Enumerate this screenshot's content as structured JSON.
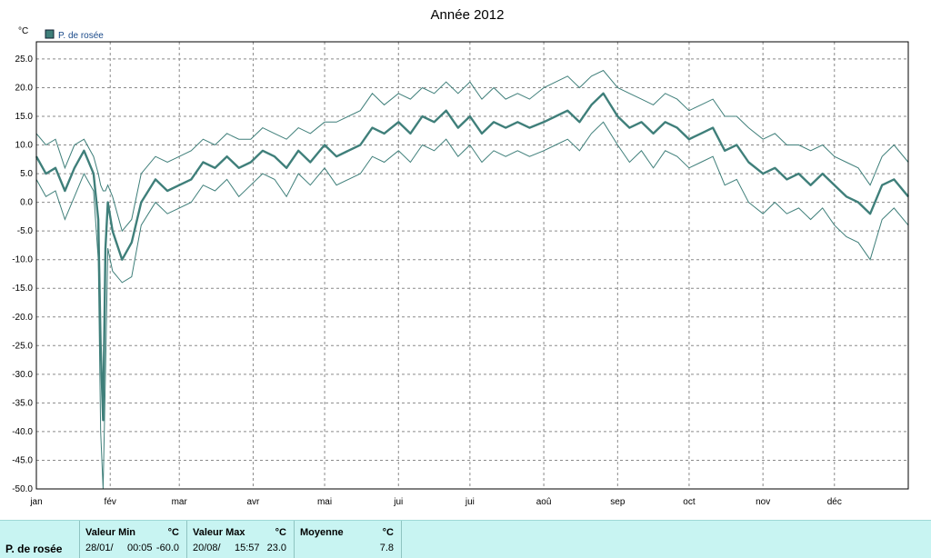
{
  "chart_data": {
    "type": "line",
    "title": "Année 2012",
    "ylabel": "°C",
    "ylim": [
      -50,
      28
    ],
    "yticks": [
      "25.0",
      "20.0",
      "15.0",
      "10.0",
      "5.0",
      "0.0",
      "-5.0",
      "-10.0",
      "-15.0",
      "-20.0",
      "-25.0",
      "-30.0",
      "-35.0",
      "-40.0",
      "-45.0",
      "-50.0"
    ],
    "xlim": [
      0,
      366
    ],
    "month_labels": [
      "jan",
      "fév",
      "mar",
      "avr",
      "mai",
      "jui",
      "jui",
      "aoû",
      "sep",
      "oct",
      "nov",
      "déc"
    ],
    "month_starts": [
      0,
      31,
      60,
      91,
      121,
      152,
      182,
      213,
      244,
      274,
      305,
      335
    ],
    "grid": true,
    "legend_position": "top-left",
    "series_color": "#3f7f7a",
    "series": [
      {
        "name": "P. de rosée",
        "x": [
          0,
          4,
          8,
          12,
          16,
          20,
          24,
          26,
          27,
          28,
          29,
          30,
          32,
          36,
          40,
          44,
          50,
          55,
          60,
          65,
          70,
          75,
          80,
          85,
          90,
          95,
          100,
          105,
          110,
          115,
          121,
          126,
          131,
          136,
          141,
          146,
          152,
          157,
          162,
          167,
          172,
          177,
          182,
          187,
          192,
          197,
          202,
          207,
          213,
          218,
          223,
          228,
          233,
          238,
          244,
          249,
          254,
          259,
          264,
          269,
          274,
          279,
          284,
          289,
          294,
          299,
          305,
          310,
          315,
          320,
          325,
          330,
          335,
          340,
          345,
          350,
          355,
          360,
          366
        ],
        "mean": [
          8,
          5,
          6,
          2,
          6,
          9,
          5,
          -3,
          -25,
          -38,
          -8,
          0,
          -5,
          -10,
          -7,
          0,
          4,
          2,
          3,
          4,
          7,
          6,
          8,
          6,
          7,
          9,
          8,
          6,
          9,
          7,
          10,
          8,
          9,
          10,
          13,
          12,
          14,
          12,
          15,
          14,
          16,
          13,
          15,
          12,
          14,
          13,
          14,
          13,
          14,
          15,
          16,
          14,
          17,
          19,
          15,
          13,
          14,
          12,
          14,
          13,
          11,
          12,
          13,
          9,
          10,
          7,
          5,
          6,
          4,
          5,
          3,
          5,
          3,
          1,
          0,
          -2,
          3,
          4,
          1
        ],
        "high": [
          12,
          10,
          11,
          6,
          10,
          11,
          8,
          5,
          3,
          2,
          2,
          3,
          1,
          -5,
          -3,
          5,
          8,
          7,
          8,
          9,
          11,
          10,
          12,
          11,
          11,
          13,
          12,
          11,
          13,
          12,
          14,
          14,
          15,
          16,
          19,
          17,
          19,
          18,
          20,
          19,
          21,
          19,
          21,
          18,
          20,
          18,
          19,
          18,
          20,
          21,
          22,
          20,
          22,
          23,
          20,
          19,
          18,
          17,
          19,
          18,
          16,
          17,
          18,
          15,
          15,
          13,
          11,
          12,
          10,
          10,
          9,
          10,
          8,
          7,
          6,
          3,
          8,
          10,
          7
        ],
        "low": [
          4,
          1,
          2,
          -3,
          1,
          5,
          2,
          -10,
          -40,
          -60,
          -30,
          -8,
          -12,
          -14,
          -13,
          -4,
          0,
          -2,
          -1,
          0,
          3,
          2,
          4,
          1,
          3,
          5,
          4,
          1,
          5,
          3,
          6,
          3,
          4,
          5,
          8,
          7,
          9,
          7,
          10,
          9,
          11,
          8,
          10,
          7,
          9,
          8,
          9,
          8,
          9,
          10,
          11,
          9,
          12,
          14,
          10,
          7,
          9,
          6,
          9,
          8,
          6,
          7,
          8,
          3,
          4,
          0,
          -2,
          0,
          -2,
          -1,
          -3,
          -1,
          -4,
          -6,
          -7,
          -10,
          -3,
          -1,
          -4
        ]
      }
    ]
  },
  "stats": {
    "series_label": "P. de rosée",
    "min": {
      "header": "Valeur Min",
      "unit": "°C",
      "date": "28/01/",
      "time": "00:05",
      "value": "-60.0"
    },
    "max": {
      "header": "Valeur Max",
      "unit": "°C",
      "date": "20/08/",
      "time": "15:57",
      "value": "23.0"
    },
    "avg": {
      "header": "Moyenne",
      "unit": "°C",
      "value": "7.8"
    }
  }
}
